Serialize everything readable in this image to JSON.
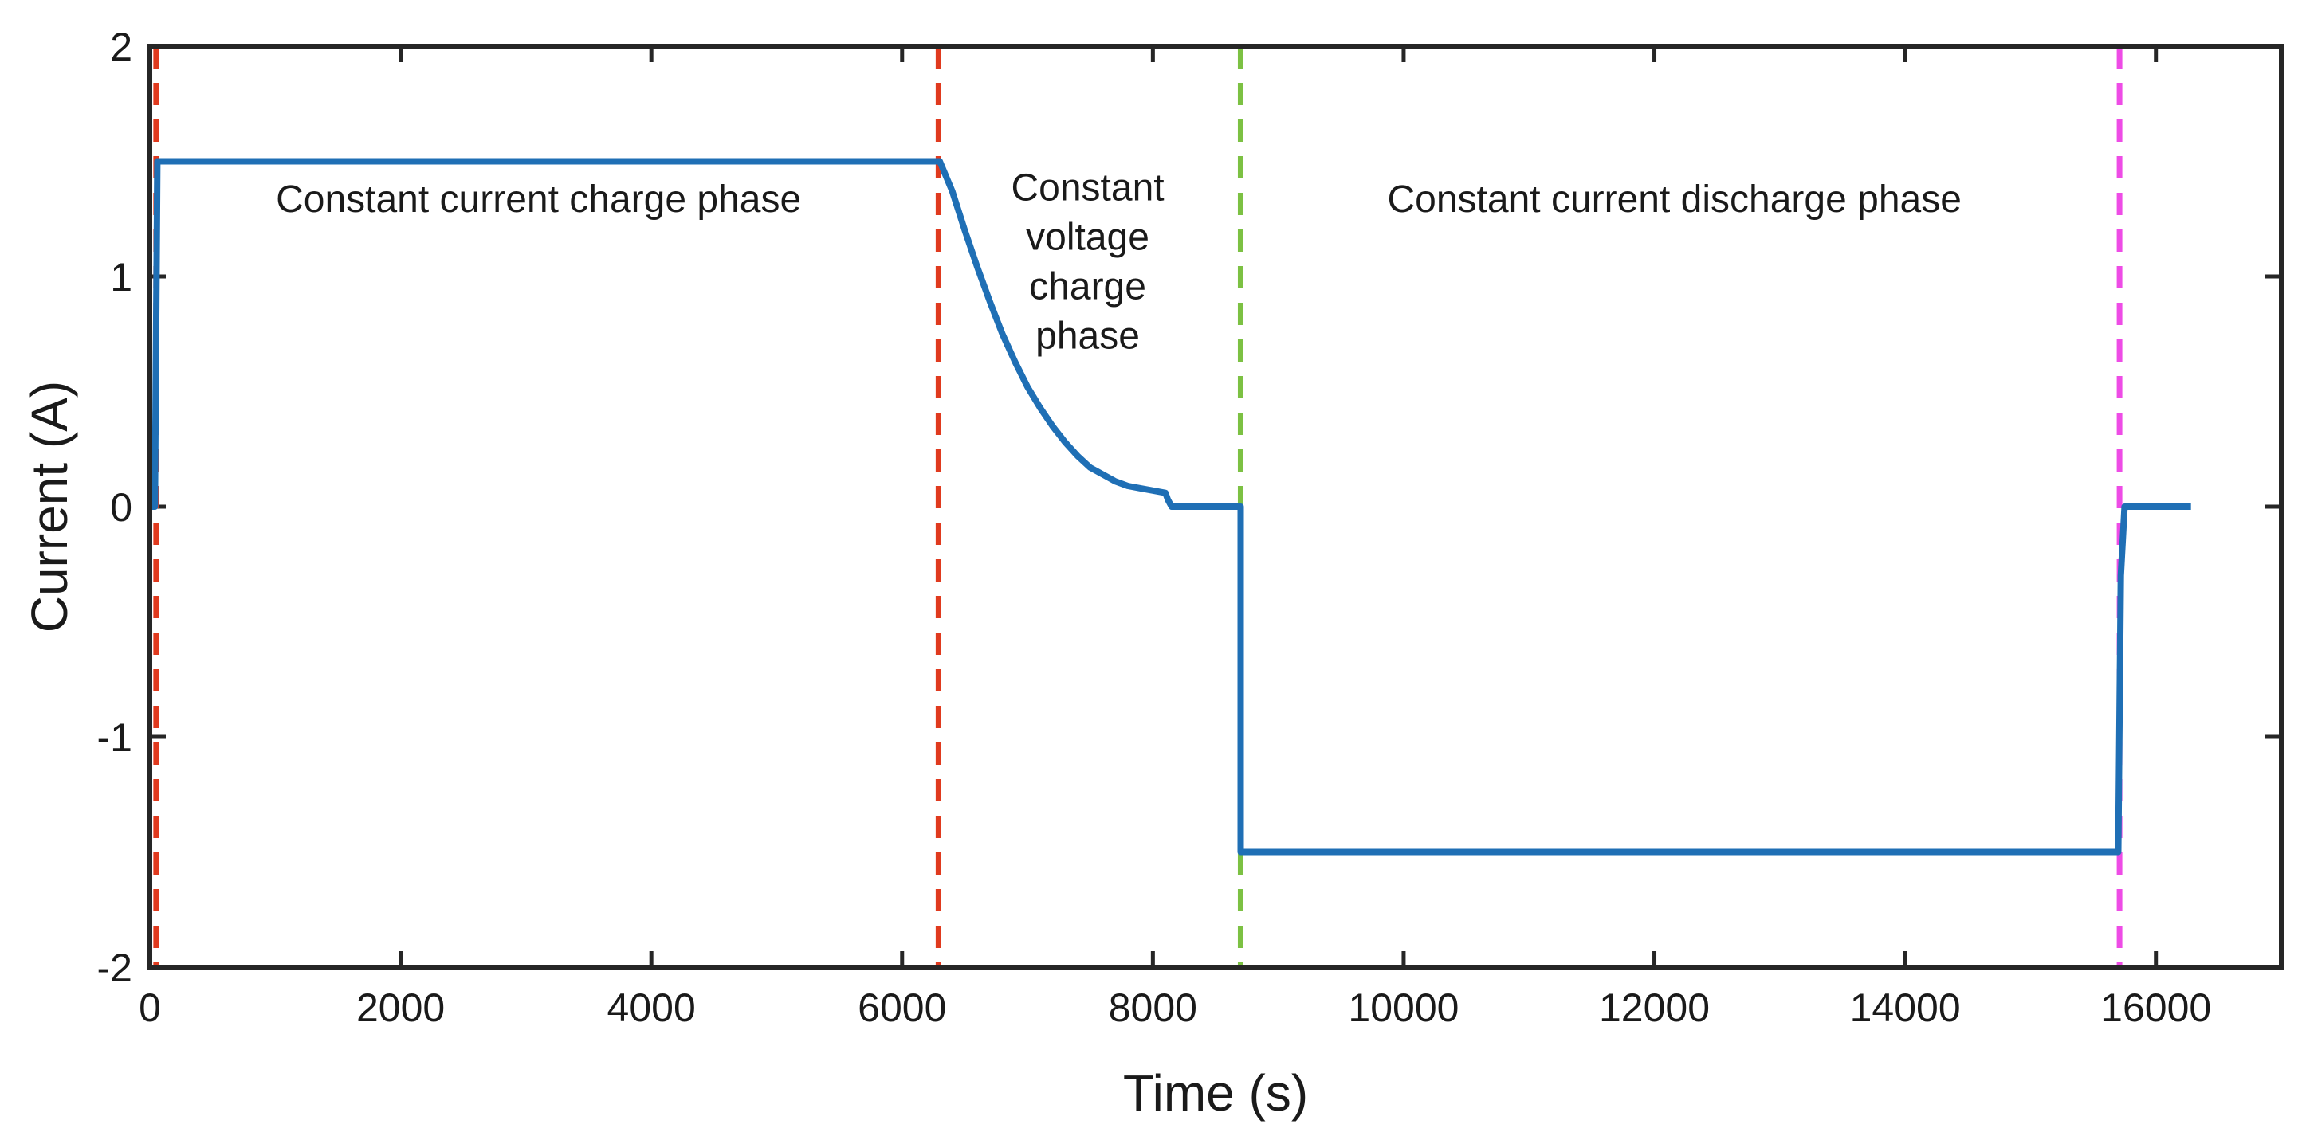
{
  "chart_data": {
    "type": "line",
    "title": "",
    "xlabel": "Time (s)",
    "ylabel": "Current (A)",
    "xlim": [
      0,
      17000
    ],
    "ylim": [
      -2,
      2
    ],
    "xticks": [
      0,
      2000,
      4000,
      6000,
      8000,
      10000,
      12000,
      14000,
      16000
    ],
    "xtick_labels": [
      "0",
      "2000",
      "4000",
      "6000",
      "8000",
      "10000",
      "12000",
      "14000",
      "16000"
    ],
    "yticks": [
      -2,
      -1,
      0,
      1,
      2
    ],
    "ytick_labels": [
      "-2",
      "-1",
      "0",
      "1",
      "2"
    ],
    "grid": false,
    "series": [
      {
        "name": "Current",
        "color": "#1f6fb5",
        "x": [
          0,
          40,
          60,
          80,
          6280,
          6300,
          6400,
          6500,
          6600,
          6700,
          6800,
          6900,
          7000,
          7100,
          7200,
          7300,
          7400,
          7500,
          7600,
          7700,
          7800,
          7900,
          8000,
          8100,
          8120,
          8150,
          8200,
          8700,
          8700,
          8740,
          15700,
          15720,
          15750,
          16280
        ],
        "y": [
          0,
          0,
          1.5,
          1.5,
          1.5,
          1.5,
          1.37,
          1.2,
          1.04,
          0.89,
          0.75,
          0.63,
          0.52,
          0.43,
          0.35,
          0.28,
          0.22,
          0.17,
          0.14,
          0.11,
          0.09,
          0.08,
          0.07,
          0.06,
          0.03,
          0,
          0,
          0,
          -1.5,
          -1.5,
          -1.5,
          -0.3,
          0,
          0
        ]
      }
    ],
    "vertical_lines": [
      {
        "name": "charge-start",
        "x": 50,
        "color": "#e03a1e"
      },
      {
        "name": "cv-start",
        "x": 6290,
        "color": "#e03a1e"
      },
      {
        "name": "discharge-start",
        "x": 8700,
        "color": "#7cc143"
      },
      {
        "name": "discharge-end",
        "x": 15710,
        "color": "#ee4ce6"
      }
    ],
    "annotations": [
      {
        "name": "cc-charge-label",
        "lines": [
          "Constant current charge phase"
        ],
        "x": 3100,
        "y": 1.28
      },
      {
        "name": "cv-charge-label",
        "lines": [
          "Constant",
          "voltage",
          "charge",
          "phase"
        ],
        "x": 7480,
        "y": 1.33
      },
      {
        "name": "cc-discharge-label",
        "lines": [
          "Constant current discharge phase"
        ],
        "x": 12160,
        "y": 1.28
      }
    ]
  }
}
